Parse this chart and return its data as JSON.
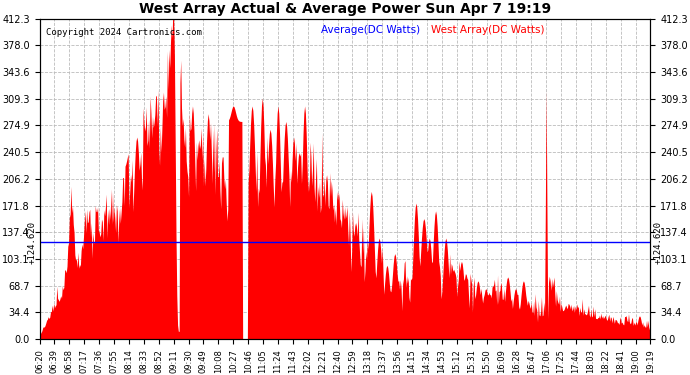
{
  "title": "West Array Actual & Average Power Sun Apr 7 19:19",
  "copyright": "Copyright 2024 Cartronics.com",
  "legend_avg": "Average(DC Watts)",
  "legend_west": "West Array(DC Watts)",
  "avg_value": 124.62,
  "avg_label": "124.620",
  "ylim": [
    0.0,
    412.3
  ],
  "yticks": [
    0.0,
    34.4,
    68.7,
    103.1,
    137.4,
    171.8,
    206.2,
    240.5,
    274.9,
    309.3,
    343.6,
    378.0,
    412.3
  ],
  "avg_line_color": "blue",
  "fill_color": "red",
  "background_color": "white",
  "grid_color": "#bbbbbb",
  "title_color": "black",
  "copyright_color": "black",
  "figsize": [
    6.9,
    3.75
  ],
  "dpi": 100,
  "x_tick_labels": [
    "06:20",
    "06:39",
    "06:58",
    "07:17",
    "07:36",
    "07:55",
    "08:14",
    "08:33",
    "08:52",
    "09:11",
    "09:30",
    "09:49",
    "10:08",
    "10:27",
    "10:46",
    "11:05",
    "11:24",
    "11:43",
    "12:02",
    "12:21",
    "12:40",
    "12:59",
    "13:18",
    "13:37",
    "13:56",
    "14:15",
    "14:34",
    "14:53",
    "15:12",
    "15:31",
    "15:50",
    "16:09",
    "16:28",
    "16:47",
    "17:06",
    "17:25",
    "17:44",
    "18:03",
    "18:22",
    "18:41",
    "19:00",
    "19:19"
  ]
}
